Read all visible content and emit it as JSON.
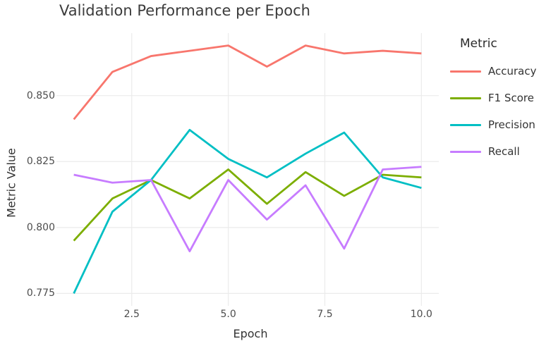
{
  "title": "Validation Performance per Epoch",
  "colors": {
    "background": "#ffffff",
    "gridline": "#ebebeb",
    "tick_text": "#4d4d4d",
    "title_text": "#3c3c3c",
    "accent_accuracy": "#F8766D",
    "accent_f1": "#7CAE00",
    "accent_precision": "#00BFC4",
    "accent_recall": "#C77CFF"
  },
  "chart_data": {
    "type": "line",
    "title": "Validation Performance per Epoch",
    "xlabel": "Epoch",
    "ylabel": "Metric Value",
    "legend_title": "Metric",
    "legend_position": "right",
    "grid": true,
    "x": [
      1,
      2,
      3,
      4,
      5,
      6,
      7,
      8,
      9,
      10
    ],
    "xlim": [
      0.55,
      10.45
    ],
    "ylim": [
      0.7703,
      0.8737
    ],
    "x_ticks": [
      2.5,
      5.0,
      7.5,
      10.0
    ],
    "x_tick_labels": [
      "2.5",
      "5.0",
      "7.5",
      "10.0"
    ],
    "y_ticks": [
      0.775,
      0.8,
      0.825,
      0.85
    ],
    "y_tick_labels": [
      "0.775",
      "0.800",
      "0.825",
      "0.850"
    ],
    "series": [
      {
        "name": "Accuracy",
        "color": "#F8766D",
        "values": [
          0.841,
          0.859,
          0.865,
          0.867,
          0.869,
          0.861,
          0.869,
          0.866,
          0.867,
          0.866
        ]
      },
      {
        "name": "F1 Score",
        "color": "#7CAE00",
        "values": [
          0.795,
          0.811,
          0.818,
          0.811,
          0.822,
          0.809,
          0.821,
          0.812,
          0.82,
          0.819
        ]
      },
      {
        "name": "Precision",
        "color": "#00BFC4",
        "values": [
          0.775,
          0.806,
          0.818,
          0.837,
          0.826,
          0.819,
          0.828,
          0.836,
          0.819,
          0.815
        ]
      },
      {
        "name": "Recall",
        "color": "#C77CFF",
        "values": [
          0.82,
          0.817,
          0.818,
          0.791,
          0.818,
          0.803,
          0.816,
          0.792,
          0.822,
          0.823
        ]
      }
    ]
  }
}
